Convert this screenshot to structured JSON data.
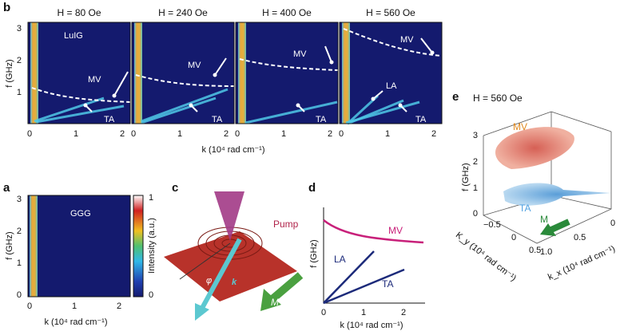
{
  "panel_b": {
    "label": "b",
    "y_axis_label": "f (GHz)",
    "y_ticks": [
      "3",
      "2",
      "1"
    ],
    "x_axis_label": "k (10⁴ rad cm⁻¹)",
    "subpanels": [
      {
        "title": "H = 80 Oe",
        "x_ticks": [
          "0",
          "1",
          "2"
        ],
        "annotations": [
          "LuIG",
          "MV",
          "TA"
        ]
      },
      {
        "title": "H = 240 Oe",
        "x_ticks": [
          "0",
          "1",
          "2"
        ],
        "annotations": [
          "MV",
          "TA"
        ]
      },
      {
        "title": "H = 400 Oe",
        "x_ticks": [
          "0",
          "1",
          "2"
        ],
        "annotations": [
          "MV",
          "TA"
        ]
      },
      {
        "title": "H = 560 Oe",
        "x_ticks": [
          "0",
          "1",
          "2"
        ],
        "annotations": [
          "MV",
          "LA",
          "TA"
        ]
      }
    ]
  },
  "panel_a": {
    "label": "a",
    "y_axis_label": "f (GHz)",
    "y_ticks": [
      "3",
      "2",
      "1",
      "0"
    ],
    "x_ticks": [
      "0",
      "1",
      "2"
    ],
    "x_axis_label": "k (10⁴ rad cm⁻¹)",
    "annotation": "GGG",
    "colorbar": {
      "label": "Intensity (a.u.)",
      "max": "1",
      "min": "0"
    }
  },
  "panel_c": {
    "label": "c",
    "pump": "Pump",
    "angle": "φ",
    "wavevector": "k",
    "magnetization": "M"
  },
  "panel_d": {
    "label": "d",
    "y_axis_label": "f (GHz)",
    "x_axis_label": "k (10⁴ rad cm⁻¹)",
    "x_ticks": [
      "0",
      "1",
      "2"
    ],
    "curves": [
      "MV",
      "LA",
      "TA"
    ]
  },
  "panel_e": {
    "label": "e",
    "title": "H = 560 Oe",
    "z_axis_label": "f (GHz)",
    "z_ticks": [
      "3",
      "2",
      "1",
      "0"
    ],
    "ky_label": "K_y (10⁴ rad cm⁻¹)",
    "ky_ticks": [
      "−0.5",
      "0",
      "0.5"
    ],
    "kx_label": "k_x (10⁴ rad cm⁻¹)",
    "kx_ticks": [
      "1.0",
      "0.5",
      "0"
    ],
    "annotations": [
      "MV",
      "TA",
      "M"
    ]
  }
}
